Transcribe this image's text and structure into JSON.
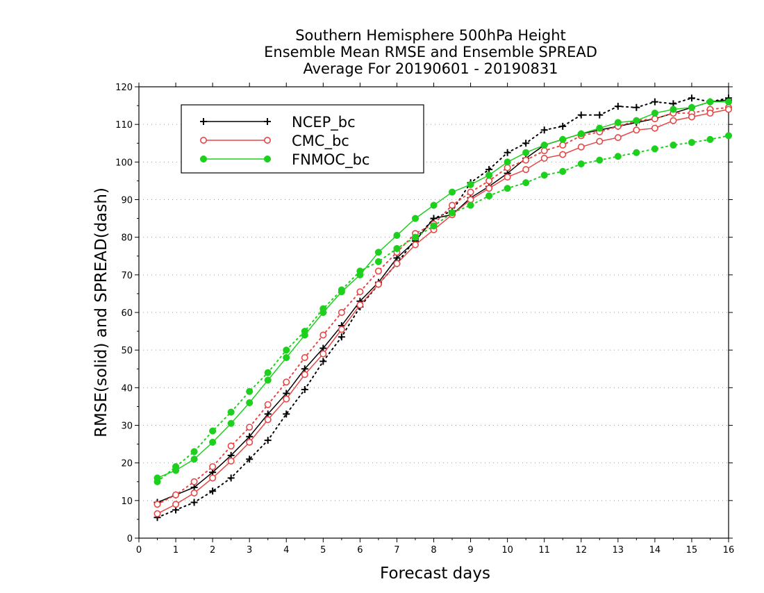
{
  "chart_data": {
    "type": "line",
    "title": [
      "Southern Hemisphere 500hPa Height",
      "Ensemble Mean RMSE and Ensemble SPREAD",
      "Average For 20190601 - 20190831"
    ],
    "xlabel": "Forecast days",
    "ylabel": "RMSE(solid) and SPREAD(dash)",
    "xlim": [
      0,
      16
    ],
    "ylim": [
      0,
      120
    ],
    "xticks": [
      "0",
      "1",
      "2",
      "3",
      "4",
      "5",
      "6",
      "7",
      "8",
      "9",
      "10",
      "11",
      "12",
      "13",
      "14",
      "15",
      "16"
    ],
    "yticks": [
      "0",
      "10",
      "20",
      "30",
      "40",
      "50",
      "60",
      "70",
      "80",
      "90",
      "100",
      "110",
      "120"
    ],
    "grid": "horizontal dotted",
    "legend_position": "top-left",
    "x": [
      0.5,
      1,
      1.5,
      2,
      2.5,
      3,
      3.5,
      4,
      4.5,
      5,
      5.5,
      6,
      6.5,
      7,
      7.5,
      8,
      8.5,
      9,
      9.5,
      10,
      10.5,
      11,
      11.5,
      12,
      12.5,
      13,
      13.5,
      14,
      14.5,
      15,
      15.5,
      16
    ],
    "series": [
      {
        "name": "NCEP_bc",
        "color": "#000000",
        "marker": "plus",
        "rmse": [
          9.5,
          11.5,
          13.5,
          17.5,
          22,
          27,
          33,
          38.5,
          45,
          50.5,
          56.5,
          63,
          68,
          74.5,
          79,
          85,
          86,
          90.5,
          93.5,
          97,
          101,
          104.5,
          106,
          107.5,
          108.5,
          109.5,
          110.5,
          111.5,
          113,
          114.5,
          116,
          116.5
        ],
        "spread": [
          5.5,
          7.5,
          9.5,
          12.5,
          16,
          21,
          26,
          33,
          39.5,
          47,
          53.5,
          61.5,
          67.5,
          73,
          79.5,
          85,
          87,
          94.5,
          98,
          102.5,
          105,
          108.5,
          109.5,
          112.5,
          112.5,
          114.8,
          114.5,
          116,
          115.5,
          117,
          116,
          117
        ]
      },
      {
        "name": "CMC_bc",
        "color": "#e84545",
        "marker": "circle-open",
        "rmse": [
          6.5,
          9,
          12,
          16,
          20.5,
          25.5,
          31.5,
          37,
          43.5,
          49,
          55.5,
          62,
          67.5,
          73,
          78,
          82,
          86,
          90,
          93,
          96,
          98,
          101,
          102,
          104,
          105.5,
          106.5,
          108.5,
          109,
          111,
          112,
          113,
          114
        ],
        "spread": [
          9,
          11.5,
          15,
          19,
          24.5,
          29.5,
          35.5,
          41.5,
          48,
          54,
          60,
          65.5,
          71,
          76,
          81,
          83.5,
          88.5,
          92,
          95,
          98.5,
          100.5,
          103,
          104.5,
          107,
          108,
          109.5,
          111,
          111.5,
          113,
          113,
          114,
          114.5
        ]
      },
      {
        "name": "FNMOC_bc",
        "color": "#1ed01e",
        "marker": "circle-filled",
        "rmse": [
          16,
          18,
          21,
          25.5,
          30.5,
          36,
          42,
          48,
          54,
          60,
          65.5,
          70,
          76,
          80.5,
          85,
          88.5,
          92,
          94,
          96.5,
          100,
          102.5,
          104.5,
          106,
          107.5,
          109,
          110.5,
          111,
          113,
          114,
          114.5,
          116,
          116
        ],
        "spread": [
          15,
          19,
          23,
          28.5,
          33.5,
          39,
          44,
          50,
          55,
          61,
          66,
          71,
          73.5,
          77,
          80,
          83,
          86.5,
          88.5,
          91,
          93,
          94.5,
          96.5,
          97.5,
          99.5,
          100.5,
          101.5,
          102.5,
          103.5,
          104.5,
          105.2,
          106,
          107
        ]
      }
    ]
  }
}
